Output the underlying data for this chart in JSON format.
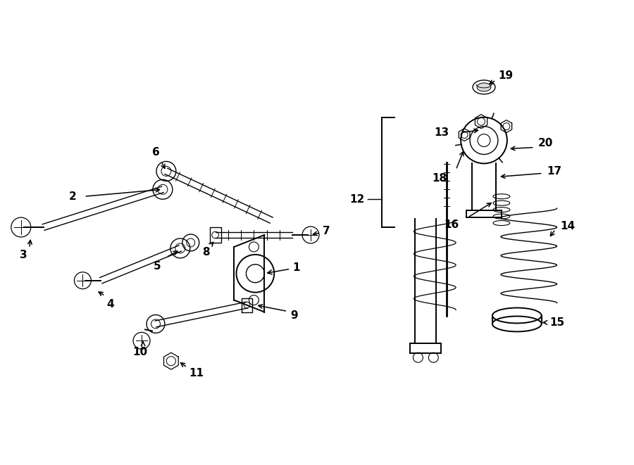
{
  "bg_color": "#ffffff",
  "line_color": "#000000",
  "label_color": "#000000",
  "fig_width": 9.0,
  "fig_height": 6.61,
  "dpi": 100
}
